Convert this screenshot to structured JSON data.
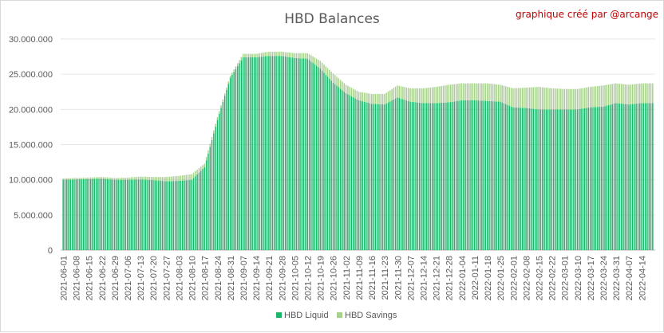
{
  "chart_data": {
    "type": "bar",
    "stacked": true,
    "title": "HBD Balances",
    "credit": "graphique créé par @arcange",
    "xlabel": "",
    "ylabel": "",
    "ylim": [
      0,
      30000000
    ],
    "yticks": [
      0,
      5000000,
      10000000,
      15000000,
      20000000,
      25000000,
      30000000
    ],
    "ytick_labels": [
      "0",
      "5.000.000",
      "10.000.000",
      "15.000.000",
      "20.000.000",
      "25.000.000",
      "30.000.000"
    ],
    "grid": true,
    "legend_position": "bottom",
    "x_tick_labels": [
      "2021-06-01",
      "2021-06-08",
      "2021-06-15",
      "2021-06-22",
      "2021-06-29",
      "2021-07-06",
      "2021-07-13",
      "2021-07-20",
      "2021-07-27",
      "2021-08-03",
      "2021-08-10",
      "2021-08-17",
      "2021-08-24",
      "2021-08-31",
      "2021-09-07",
      "2021-09-14",
      "2021-09-21",
      "2021-09-28",
      "2021-10-05",
      "2021-10-12",
      "2021-10-19",
      "2021-10-26",
      "2021-11-02",
      "2021-11-09",
      "2021-11-16",
      "2021-11-23",
      "2021-11-30",
      "2021-12-07",
      "2021-12-14",
      "2021-12-21",
      "2021-12-28",
      "2022-01-04",
      "2022-01-11",
      "2022-01-18",
      "2022-01-25",
      "2022-02-01",
      "2022-02-08",
      "2022-02-15",
      "2022-02-22",
      "2022-03-01",
      "2022-03-10",
      "2022-03-17",
      "2022-03-24",
      "2022-03-31",
      "2022-04-07",
      "2022-04-14"
    ],
    "series": [
      {
        "name": "HBD Liquid",
        "color": "#1db56a",
        "values": [
          10000000,
          10050000,
          10100000,
          10150000,
          10000000,
          10000000,
          10050000,
          9950000,
          9800000,
          9850000,
          10000000,
          11800000,
          18500000,
          24500000,
          27400000,
          27400000,
          27600000,
          27600000,
          27300000,
          27200000,
          25800000,
          23800000,
          22300000,
          21300000,
          20800000,
          20700000,
          21700000,
          21100000,
          20900000,
          20900000,
          21000000,
          21300000,
          21300000,
          21200000,
          21100000,
          20300000,
          20200000,
          20000000,
          20000000,
          20000000,
          20000000,
          20300000,
          20400000,
          20900000,
          20700000,
          20900000
        ]
      },
      {
        "name": "HBD Savings",
        "color": "#a9d18e",
        "values": [
          200000,
          200000,
          200000,
          250000,
          250000,
          300000,
          400000,
          450000,
          600000,
          700000,
          800000,
          500000,
          400000,
          300000,
          500000,
          500000,
          600000,
          600000,
          700000,
          800000,
          1100000,
          1300000,
          1200000,
          1200000,
          1400000,
          1500000,
          1700000,
          1900000,
          2100000,
          2300000,
          2500000,
          2400000,
          2400000,
          2500000,
          2400000,
          2700000,
          2900000,
          3200000,
          3000000,
          2900000,
          2900000,
          2900000,
          3000000,
          2800000,
          2800000,
          2800000
        ]
      }
    ]
  }
}
